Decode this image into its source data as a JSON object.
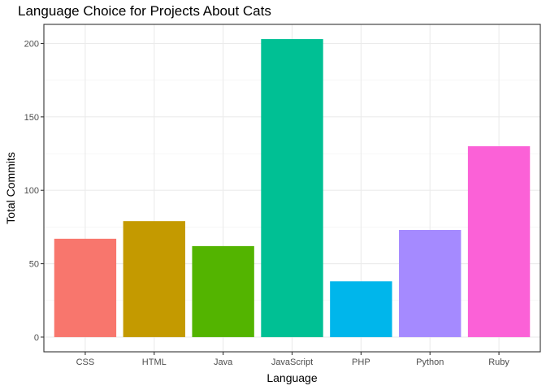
{
  "chart_data": {
    "type": "bar",
    "title": "Language Choice for Projects About Cats",
    "xlabel": "Language",
    "ylabel": "Total Commits",
    "categories": [
      "CSS",
      "HTML",
      "Java",
      "JavaScript",
      "PHP",
      "Python",
      "Ruby"
    ],
    "values": [
      67,
      79,
      62,
      203,
      38,
      73,
      130
    ],
    "colors": [
      "#F8766D",
      "#C49A00",
      "#53B400",
      "#00C094",
      "#00B6EB",
      "#A58AFF",
      "#FB61D7"
    ],
    "ylim": [
      -10,
      213
    ],
    "yticks": [
      0,
      50,
      100,
      150,
      200
    ],
    "grid": true,
    "legend": "none"
  }
}
